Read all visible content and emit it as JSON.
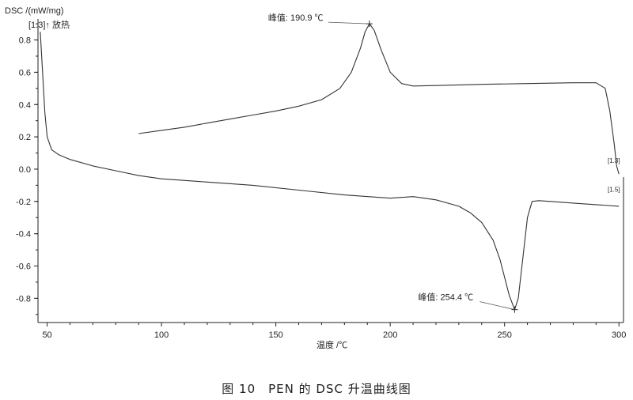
{
  "chart_data": {
    "type": "line",
    "ylabel": "DSC /(mW/mg)",
    "exo_label": "[1.3]↑ 放热",
    "xlabel": "温度 /℃",
    "xlim": [
      46,
      302
    ],
    "ylim": [
      -0.95,
      0.93
    ],
    "x_ticks": [
      50,
      100,
      150,
      200,
      250,
      300
    ],
    "y_ticks": [
      0.8,
      0.6,
      0.4,
      0.2,
      0.0,
      -0.2,
      -0.4,
      -0.6,
      -0.8
    ],
    "x_tick_labels": [
      "50",
      "100",
      "150",
      "200",
      "250",
      "300"
    ],
    "y_tick_labels": [
      "0.8",
      "0.6",
      "0.4",
      "0.2",
      "0.0",
      "-0.2",
      "-0.4",
      "-0.6",
      "-0.8"
    ],
    "series": [
      {
        "name": "[1.3]",
        "x": [
          90,
          100,
          110,
          120,
          130,
          140,
          150,
          160,
          170,
          178,
          183,
          187,
          189,
          190.9,
          193,
          196,
          200,
          205,
          210,
          220,
          240,
          260,
          280,
          290,
          294,
          296,
          298,
          299,
          300
        ],
        "y": [
          0.22,
          0.24,
          0.26,
          0.285,
          0.31,
          0.335,
          0.36,
          0.39,
          0.43,
          0.5,
          0.6,
          0.75,
          0.85,
          0.9,
          0.86,
          0.74,
          0.6,
          0.53,
          0.515,
          0.518,
          0.525,
          0.53,
          0.535,
          0.535,
          0.5,
          0.36,
          0.15,
          0.02,
          -0.03
        ]
      },
      {
        "name": "[1.5]",
        "x": [
          47,
          48,
          49,
          50,
          52,
          55,
          60,
          70,
          80,
          90,
          100,
          120,
          140,
          160,
          180,
          200,
          210,
          220,
          230,
          235,
          240,
          245,
          248,
          250,
          252,
          254.4,
          256,
          258,
          260,
          262,
          265,
          270,
          280,
          290,
          300
        ],
        "y": [
          0.85,
          0.6,
          0.35,
          0.2,
          0.12,
          0.09,
          0.06,
          0.02,
          -0.01,
          -0.04,
          -0.06,
          -0.08,
          -0.1,
          -0.13,
          -0.16,
          -0.18,
          -0.17,
          -0.19,
          -0.23,
          -0.27,
          -0.33,
          -0.44,
          -0.56,
          -0.67,
          -0.78,
          -0.87,
          -0.8,
          -0.55,
          -0.3,
          -0.2,
          -0.195,
          -0.2,
          -0.21,
          -0.22,
          -0.23
        ]
      }
    ],
    "peaks": [
      {
        "label": "峰值: 190.9 ℃",
        "x": 190.9,
        "y": 0.9
      },
      {
        "label": "峰值: 254.4 ℃",
        "x": 254.4,
        "y": -0.87
      }
    ],
    "series_labels": [
      "[1.3]",
      "[1.5]"
    ],
    "colors": {
      "line": "#333333",
      "axis": "#222222",
      "text": "#222222"
    }
  },
  "caption": "图 10　PEN 的 DSC 升温曲线图"
}
